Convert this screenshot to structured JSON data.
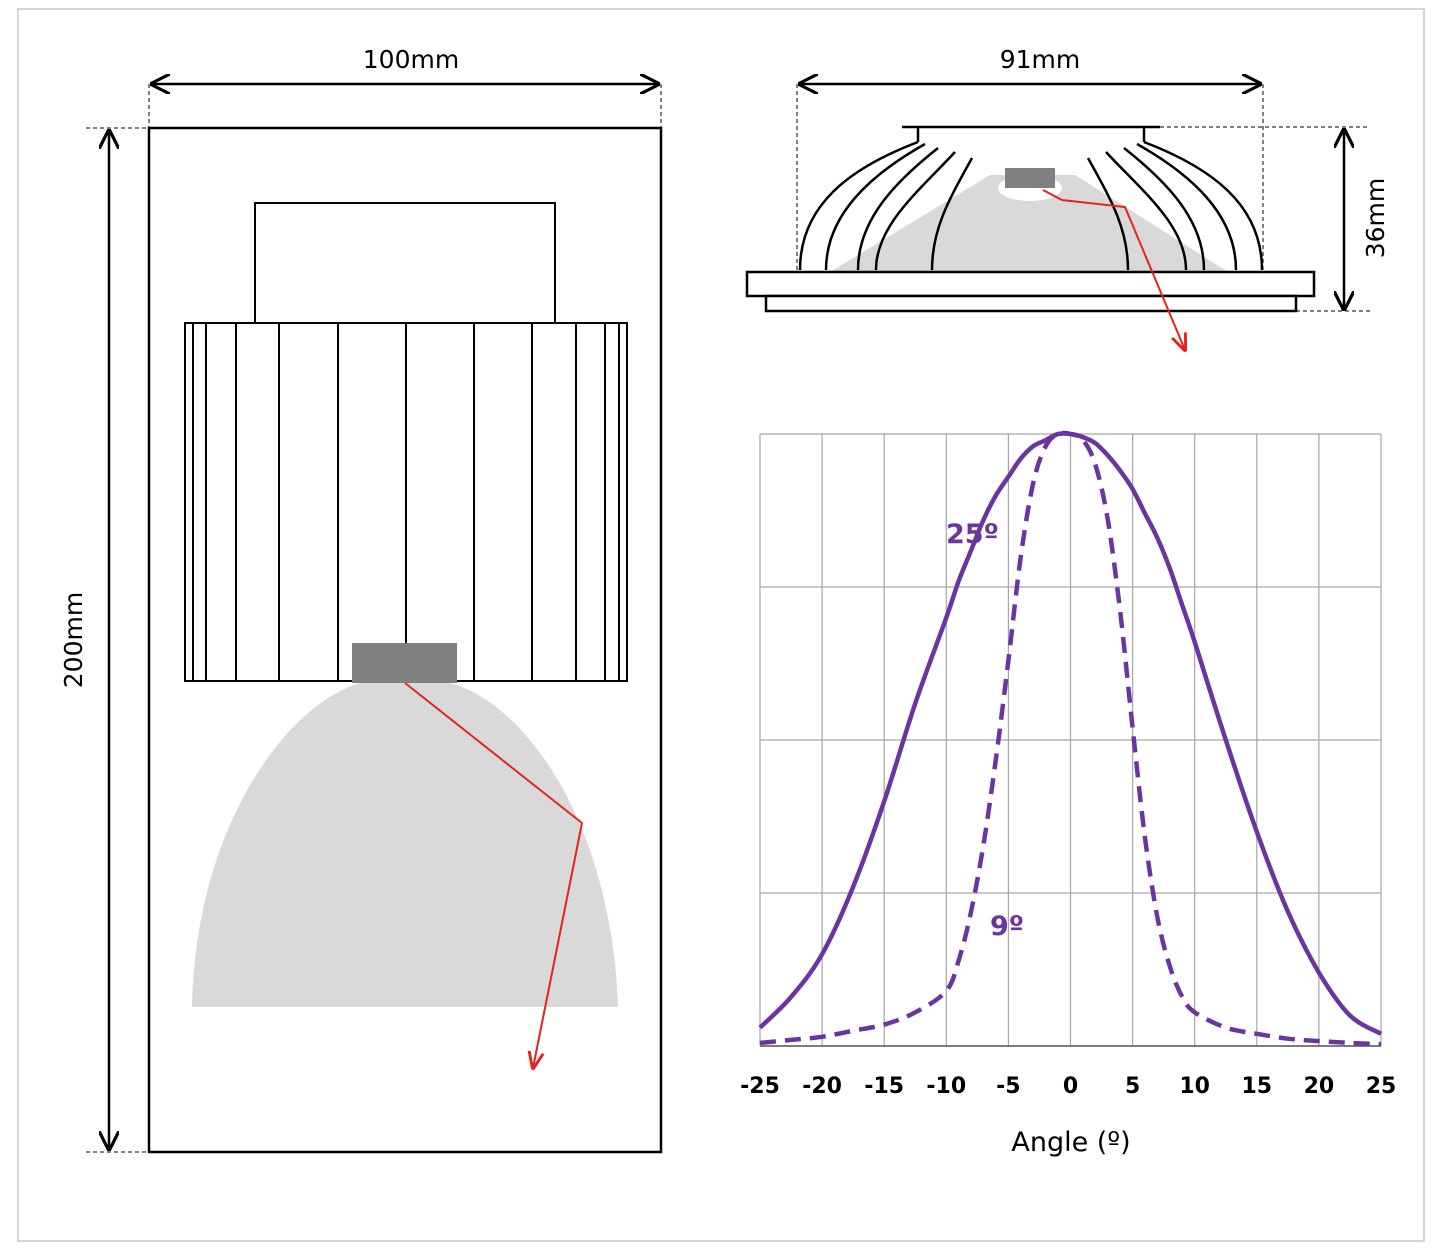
{
  "colors": {
    "curve": "#6a35a0",
    "ray": "#e3231c",
    "beam": "#d9d9d9",
    "led": "#808080",
    "grid": "#a6a6a6",
    "frame": "#c8c8c8"
  },
  "dimensions": {
    "side_width": "100mm",
    "side_height": "200mm",
    "top_width": "91mm",
    "top_height": "36mm"
  },
  "chart_data": {
    "type": "line",
    "title": "",
    "xlabel": "Angle (º)",
    "ylabel": "",
    "xlim": [
      -25,
      25
    ],
    "ylim": [
      0,
      1
    ],
    "grid": true,
    "x_ticks": [
      "-25",
      "-20",
      "-15",
      "-10",
      "-5",
      "0",
      "5",
      "10",
      "15",
      "20",
      "25"
    ],
    "x": [
      -25,
      -22.5,
      -20,
      -17.5,
      -15,
      -12.5,
      -10,
      -9,
      -8,
      -7,
      -6,
      -5,
      -4,
      -3,
      -2,
      -1,
      0,
      1,
      2,
      3,
      4,
      5,
      6,
      7,
      8,
      9,
      10,
      12.5,
      15,
      17.5,
      20,
      22.5,
      25
    ],
    "series": [
      {
        "name": "25º",
        "style": "solid",
        "values": [
          0.03,
          0.08,
          0.15,
          0.26,
          0.4,
          0.56,
          0.7,
          0.76,
          0.81,
          0.86,
          0.9,
          0.93,
          0.96,
          0.98,
          0.99,
          1.0,
          1.0,
          0.995,
          0.985,
          0.965,
          0.94,
          0.91,
          0.87,
          0.83,
          0.78,
          0.72,
          0.66,
          0.5,
          0.35,
          0.22,
          0.12,
          0.05,
          0.02
        ]
      },
      {
        "name": "9º",
        "style": "dashed",
        "values": [
          0.005,
          0.01,
          0.015,
          0.025,
          0.035,
          0.055,
          0.09,
          0.14,
          0.22,
          0.33,
          0.47,
          0.63,
          0.8,
          0.92,
          0.98,
          1.0,
          1.0,
          0.99,
          0.95,
          0.86,
          0.71,
          0.52,
          0.34,
          0.21,
          0.13,
          0.08,
          0.055,
          0.03,
          0.02,
          0.012,
          0.008,
          0.005,
          0.003
        ]
      }
    ]
  }
}
